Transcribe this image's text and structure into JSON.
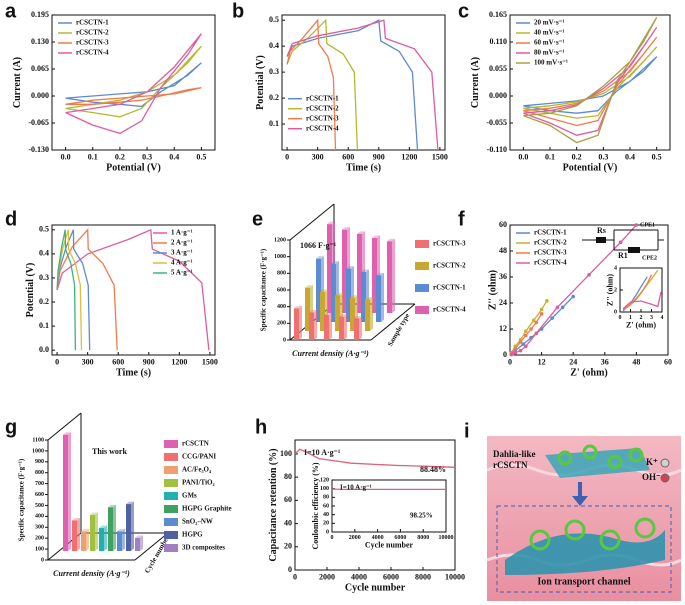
{
  "chart_data": [
    {
      "label": "a",
      "type": "line",
      "xlabel": "Potential (V)",
      "ylabel": "Current (A)",
      "legend": "upper left",
      "xlim": [
        -0.05,
        0.55
      ],
      "xticks": [
        {
          "value": 0,
          "label": "0.0"
        },
        0.1,
        0.2,
        0.3,
        0.4,
        0.5
      ],
      "ylim": [
        -0.13,
        0.195
      ],
      "yticks": [
        {
          "value": -0.13,
          "label": "-0.130"
        },
        -0.065,
        {
          "value": 0,
          "label": "0.000"
        },
        0.065,
        {
          "value": 0.13,
          "label": "0.130"
        },
        0.195
      ],
      "x": [
        0,
        0.1,
        0.2,
        0.3,
        0.4,
        0.5,
        0.45,
        0.35,
        0.28,
        0.2,
        0.1,
        0
      ],
      "series": [
        {
          "name": "rCSCTN-1",
          "color": "#5b8bd0",
          "values": [
            -0.005,
            0,
            0.005,
            0.01,
            0.025,
            0.08,
            0.05,
            0.01,
            -0.025,
            -0.02,
            -0.015,
            -0.005
          ]
        },
        {
          "name": "rCSCTN-2",
          "color": "#b5b832",
          "values": [
            -0.03,
            -0.02,
            -0.01,
            0.01,
            0.05,
            0.12,
            0.08,
            0.02,
            -0.03,
            -0.05,
            -0.04,
            -0.03
          ]
        },
        {
          "name": "rCSCTN-3",
          "color": "#f07c4a",
          "values": [
            -0.02,
            -0.01,
            -0.005,
            0,
            0.005,
            0.02,
            0.015,
            0,
            -0.01,
            -0.015,
            -0.02,
            -0.02
          ]
        },
        {
          "name": "rCSCTN-4",
          "color": "#e05aa0",
          "values": [
            -0.04,
            -0.03,
            -0.02,
            0.01,
            0.07,
            0.15,
            0.1,
            0.02,
            -0.06,
            -0.09,
            -0.07,
            -0.04
          ]
        }
      ]
    },
    {
      "label": "b",
      "type": "line",
      "xlabel": "Time (s)",
      "ylabel": "Potential (V)",
      "legend": "lower left",
      "xlim": [
        -50,
        1550
      ],
      "xticks": [
        0,
        300,
        600,
        900,
        1200,
        1500
      ],
      "ylim": [
        0,
        0.52
      ],
      "yticks": [
        0.1,
        0.2,
        0.3,
        0.4,
        0.5
      ],
      "series": [
        {
          "name": "rCSCTN-1",
          "color": "#5b8bd0",
          "x": [
            0,
            50,
            300,
            700,
            900,
            920,
            1100,
            1230,
            1280
          ],
          "values": [
            0.36,
            0.4,
            0.43,
            0.46,
            0.5,
            0.42,
            0.38,
            0.3,
            0
          ]
        },
        {
          "name": "rCSCTN-2",
          "color": "#b5b832",
          "x": [
            0,
            50,
            200,
            380,
            390,
            550,
            660,
            690
          ],
          "values": [
            0.33,
            0.38,
            0.43,
            0.5,
            0.41,
            0.37,
            0.3,
            0
          ]
        },
        {
          "name": "rCSCTN-3",
          "color": "#f07c4a",
          "x": [
            0,
            30,
            150,
            300,
            310,
            400,
            455,
            475
          ],
          "values": [
            0.33,
            0.38,
            0.43,
            0.5,
            0.41,
            0.36,
            0.28,
            0
          ]
        },
        {
          "name": "rCSCTN-4",
          "color": "#e05aa0",
          "x": [
            0,
            50,
            300,
            700,
            950,
            965,
            1250,
            1420,
            1480
          ],
          "values": [
            0.36,
            0.41,
            0.44,
            0.47,
            0.5,
            0.43,
            0.39,
            0.3,
            0
          ]
        }
      ]
    },
    {
      "label": "c",
      "type": "line",
      "xlabel": "Potential (V)",
      "ylabel": "Current (A)",
      "legend": "upper left",
      "xlim": [
        -0.05,
        0.55
      ],
      "xticks": [
        {
          "value": 0,
          "label": "0.0"
        },
        0.1,
        0.2,
        0.3,
        0.4,
        0.5
      ],
      "ylim": [
        -0.11,
        0.165
      ],
      "yticks": [
        {
          "value": -0.11,
          "label": "-0.110"
        },
        -0.055,
        {
          "value": 0,
          "label": "0.000"
        },
        0.055,
        {
          "value": 0.11,
          "label": "0.110"
        },
        0.165
      ],
      "x": [
        0,
        0.1,
        0.2,
        0.3,
        0.4,
        0.5,
        0.45,
        0.35,
        0.28,
        0.2,
        0.1,
        0
      ],
      "series": [
        {
          "name": "20 mV·s⁻¹",
          "color": "#5b8bd0",
          "values": [
            -0.02,
            -0.015,
            -0.01,
            0,
            0.03,
            0.08,
            0.05,
            0.01,
            -0.03,
            -0.035,
            -0.03,
            -0.02
          ]
        },
        {
          "name": "40 mV·s⁻¹",
          "color": "#b5b832",
          "values": [
            -0.025,
            -0.02,
            -0.012,
            0.005,
            0.04,
            0.1,
            0.07,
            0.015,
            -0.04,
            -0.045,
            -0.035,
            -0.025
          ]
        },
        {
          "name": "60 mV·s⁻¹",
          "color": "#f07c4a",
          "values": [
            -0.03,
            -0.025,
            -0.015,
            0.01,
            0.05,
            0.12,
            0.085,
            0.02,
            -0.05,
            -0.06,
            -0.045,
            -0.03
          ]
        },
        {
          "name": "80 mV·s⁻¹",
          "color": "#e05aa0",
          "values": [
            -0.035,
            -0.03,
            -0.018,
            0.015,
            0.06,
            0.14,
            0.1,
            0.025,
            -0.07,
            -0.08,
            -0.055,
            -0.035
          ]
        },
        {
          "name": "100 mV·s⁻¹",
          "color": "#a8a040",
          "values": [
            -0.04,
            -0.035,
            -0.02,
            0.02,
            0.07,
            0.16,
            0.11,
            0.03,
            -0.08,
            -0.095,
            -0.06,
            -0.04
          ]
        }
      ]
    },
    {
      "label": "d",
      "type": "line",
      "xlabel": "Time (s)",
      "ylabel": "Potential (V)",
      "legend": "upper right",
      "xlim": [
        -50,
        1550
      ],
      "xticks": [
        0,
        300,
        600,
        900,
        1200,
        1500
      ],
      "ylim": [
        -0.02,
        0.52
      ],
      "yticks": [
        {
          "value": 0,
          "label": "0.0"
        },
        0.1,
        0.2,
        0.3,
        0.4,
        0.5
      ],
      "series": [
        {
          "name": "1 A·g⁻¹",
          "color": "#e05aa0",
          "x": [
            0,
            50,
            300,
            700,
            920,
            935,
            1200,
            1420,
            1490
          ],
          "values": [
            0.25,
            0.32,
            0.4,
            0.46,
            0.5,
            0.42,
            0.37,
            0.28,
            0
          ]
        },
        {
          "name": "2 A·g⁻¹",
          "color": "#f07c4a",
          "x": [
            0,
            30,
            150,
            300,
            305,
            450,
            560,
            590
          ],
          "values": [
            0.25,
            0.33,
            0.43,
            0.5,
            0.42,
            0.36,
            0.27,
            0
          ]
        },
        {
          "name": "3 A·g⁻¹",
          "color": "#5b8bd0",
          "x": [
            0,
            20,
            90,
            160,
            163,
            250,
            305,
            320
          ],
          "values": [
            0.25,
            0.33,
            0.43,
            0.5,
            0.42,
            0.36,
            0.27,
            0
          ]
        },
        {
          "name": "4 A·g⁻¹",
          "color": "#d8c040",
          "x": [
            0,
            15,
            60,
            110,
            113,
            180,
            228,
            240
          ],
          "values": [
            0.25,
            0.33,
            0.43,
            0.5,
            0.42,
            0.36,
            0.27,
            0
          ]
        },
        {
          "name": "5 A·g⁻¹",
          "color": "#40b080",
          "x": [
            0,
            10,
            45,
            80,
            83,
            135,
            172,
            180
          ],
          "values": [
            0.25,
            0.33,
            0.43,
            0.5,
            0.42,
            0.36,
            0.27,
            0
          ]
        }
      ]
    },
    {
      "label": "e",
      "type": "bar3d",
      "xlabel": "Current density (A·g⁻¹)",
      "ylabel": "Specific capacitance (F·g⁻¹)",
      "zlabel": "Sample type",
      "legend": "right",
      "ylim": [
        0,
        1200
      ],
      "yticks": [
        0,
        200,
        400,
        600,
        800,
        1000,
        1200
      ],
      "annotations": [
        "1066 F·g⁻¹"
      ],
      "series": [
        {
          "name": "rCSCTN-3",
          "color": "#f07070",
          "values": [
            380,
            330,
            300,
            280,
            260
          ]
        },
        {
          "name": "rCSCTN-2",
          "color": "#c8a830",
          "values": [
            520,
            470,
            430,
            400,
            380
          ]
        },
        {
          "name": "rCSCTN-1",
          "color": "#5b8bd0",
          "values": [
            760,
            700,
            640,
            600,
            560
          ]
        },
        {
          "name": "rCSCTN-4",
          "color": "#e060b0",
          "values": [
            1066,
            1000,
            950,
            900,
            860
          ]
        }
      ]
    },
    {
      "label": "f",
      "type": "line",
      "markers": true,
      "xlabel": "Z' (ohm)",
      "ylabel": "Z'' (ohm)",
      "legend": "upper left",
      "xlim": [
        0,
        60
      ],
      "xticks": [
        0,
        12,
        24,
        36,
        48,
        60
      ],
      "ylim": [
        0,
        60
      ],
      "yticks": [
        0,
        12,
        24,
        36,
        48,
        60
      ],
      "circuit": [
        "Rs",
        "R1",
        "CPE1",
        "CPE2"
      ],
      "series": [
        {
          "name": "rCSCTN-1",
          "color": "#5b8bd0",
          "x": [
            0.5,
            2,
            5,
            8,
            12,
            16,
            20,
            24
          ],
          "values": [
            0.5,
            2,
            5,
            8,
            12,
            17,
            22,
            27
          ]
        },
        {
          "name": "rCSCTN-2",
          "color": "#c8b030",
          "x": [
            0.5,
            2,
            4,
            6,
            9,
            12,
            14
          ],
          "values": [
            1,
            4,
            7,
            11,
            16,
            21,
            25
          ]
        },
        {
          "name": "rCSCTN-3",
          "color": "#f07c4a",
          "x": [
            0.5,
            2,
            4,
            6,
            8,
            10,
            12
          ],
          "values": [
            1,
            3,
            6,
            9,
            12,
            15,
            19
          ]
        },
        {
          "name": "rCSCTN-4",
          "color": "#e05aa0",
          "x": [
            0.5,
            1,
            2,
            4,
            6,
            10,
            18,
            30,
            42,
            48
          ],
          "values": [
            0.2,
            0.5,
            1,
            2,
            4,
            10,
            22,
            37,
            52,
            60
          ]
        }
      ],
      "inset": {
        "xlabel": "Z' (ohm)",
        "ylabel": "Z'' (ohm)",
        "xlim": [
          0,
          4
        ],
        "xticks": [
          0,
          1,
          2,
          3,
          4
        ],
        "ylim": [
          0,
          4
        ],
        "yticks": [
          0,
          2,
          4
        ],
        "series": [
          {
            "color": "#5b8bd0",
            "x": [
              0.3,
              0.6,
              1,
              1.5,
              2,
              2.6
            ],
            "values": [
              0.1,
              0.4,
              0.8,
              1.5,
              2.3,
              3.2
            ]
          },
          {
            "color": "#c8b030",
            "x": [
              0.3,
              0.8,
              1.5,
              2.2,
              3,
              3.6
            ],
            "values": [
              0.2,
              0.6,
              1.2,
              2,
              3,
              3.8
            ]
          },
          {
            "color": "#f07c4a",
            "x": [
              0.3,
              0.8,
              1.4,
              2,
              2.6,
              3
            ],
            "values": [
              0.2,
              0.5,
              1,
              1.7,
              2.6,
              3.4
            ]
          },
          {
            "color": "#e05aa0",
            "x": [
              0.3,
              1,
              2,
              3,
              3.6,
              3.9
            ],
            "values": [
              0.3,
              0.9,
              1,
              0.7,
              0.5,
              1.8
            ]
          }
        ]
      }
    },
    {
      "label": "g",
      "type": "bar3d",
      "xlabel": "Current density (A·g⁻¹)",
      "ylabel": "Specific capacitance (F·g⁻¹)",
      "zlabel": "Cycle number",
      "legend": "right",
      "ylim": [
        0,
        1100
      ],
      "yticks": [
        0,
        100,
        200,
        300,
        400,
        500,
        600,
        700,
        800,
        900,
        1000,
        1100
      ],
      "annotations": [
        "This work"
      ],
      "categories": [
        "rCSCTN",
        "CCG/PANI",
        "AC/Fe₃O₄",
        "PANI/TiO₂",
        "GMs",
        "HGPG Graphite",
        "SnO₂–NW",
        "HGPG",
        "3D composites"
      ],
      "values": [
        1066,
        280,
        180,
        330,
        210,
        400,
        180,
        430,
        120
      ],
      "colors": [
        "#e060b0",
        "#f07070",
        "#f0a070",
        "#a0c040",
        "#20b0b0",
        "#40a060",
        "#5b8bd0",
        "#5060a0",
        "#a080c0"
      ]
    },
    {
      "label": "h",
      "type": "line",
      "xlabel": "Cycle number",
      "ylabel": "Capacitance retention (%)",
      "xlim": [
        0,
        10000
      ],
      "xticks": [
        0,
        2000,
        4000,
        6000,
        8000,
        10000
      ],
      "ylim": [
        0,
        112
      ],
      "yticks": [
        0,
        20,
        40,
        60,
        80,
        100
      ],
      "annotations": [
        "I=10 A·g⁻¹",
        "88.48%"
      ],
      "series": [
        {
          "color": "#e0607a",
          "x": [
            0,
            300,
            800,
            1500,
            2500,
            3500,
            5000,
            6500,
            8000,
            9000,
            10000
          ],
          "values": [
            100,
            104,
            101,
            96,
            94,
            92,
            91,
            90,
            89.5,
            89,
            88.48
          ]
        }
      ],
      "inset": {
        "xlabel": "Cycle number",
        "ylabel": "Coulombic efficiency (%)",
        "annotations": [
          "I=10 A·g⁻¹",
          "98.25%"
        ],
        "xlim": [
          0,
          10000
        ],
        "xticks": [
          0,
          2000,
          4000,
          6000,
          8000,
          10000
        ],
        "ylim": [
          0,
          120
        ],
        "yticks": [
          0,
          20,
          40,
          60,
          80,
          100,
          120
        ],
        "series": [
          {
            "color": "#e0607a",
            "x": [
              0,
              1000,
              2000,
              3000,
              4000,
              5000,
              6000,
              7000,
              8000,
              9000,
              10000
            ],
            "values": [
              99,
              98.4,
              98.3,
              98.3,
              98.2,
              98.3,
              98.2,
              98.3,
              98.2,
              98.3,
              98.25
            ]
          }
        ]
      }
    }
  ],
  "illustration": {
    "label": "i",
    "texts": [
      "Dahlia-like",
      "rCSCTN",
      "K⁺",
      "OH⁻",
      "Ion transport channel"
    ]
  }
}
